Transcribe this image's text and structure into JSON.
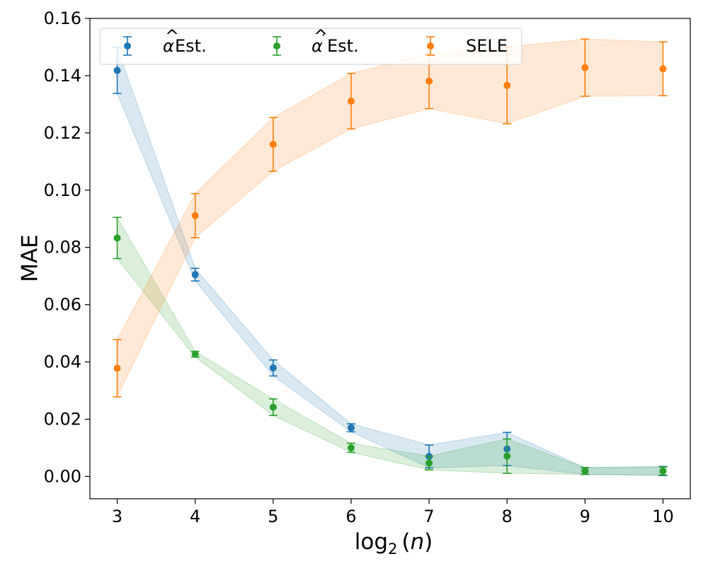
{
  "chart_data": {
    "type": "scatter",
    "title": "",
    "xlabel_parts": [
      "log",
      "2",
      "(",
      "n",
      ")"
    ],
    "ylabel": "MAE",
    "xlim": [
      2.65,
      10.35
    ],
    "ylim": [
      -0.0078,
      0.16
    ],
    "x": [
      3,
      4,
      5,
      6,
      7,
      8,
      9,
      10
    ],
    "xticks": [
      "3",
      "4",
      "5",
      "6",
      "7",
      "8",
      "9",
      "10"
    ],
    "yticks": [
      "0.00",
      "0.02",
      "0.04",
      "0.06",
      "0.08",
      "0.10",
      "0.12",
      "0.14",
      "0.16"
    ],
    "ytick_values": [
      0.0,
      0.02,
      0.04,
      0.06,
      0.08,
      0.1,
      0.12,
      0.14,
      0.16
    ],
    "legend_position": "upper-left",
    "series": [
      {
        "name": "α̂ Est.",
        "label_base": "α",
        "label_mark": "^",
        "label_suffix": " Est.",
        "color": "#1f77b4",
        "fill": "#c6dbef",
        "values": [
          0.1418,
          0.0705,
          0.0379,
          0.017,
          0.007,
          0.0096,
          0.0019,
          0.0019
        ],
        "err": [
          0.008,
          0.0022,
          0.0028,
          0.0014,
          0.004,
          0.0058,
          0.0012,
          0.0016
        ]
      },
      {
        "name": "α̂′ Est.",
        "label_base": "α",
        "label_mark": "^",
        "label_prime": "′",
        "label_suffix": " Est.",
        "color": "#2ca02c",
        "fill": "#c7e9c0",
        "values": [
          0.0833,
          0.0427,
          0.0242,
          0.01,
          0.0047,
          0.0071,
          0.0019,
          0.0019
        ],
        "err": [
          0.0072,
          0.001,
          0.0029,
          0.0016,
          0.0024,
          0.006,
          0.0012,
          0.0014
        ]
      },
      {
        "name": "SELE",
        "label_base": "SELE",
        "label_suffix": "",
        "color": "#ff7f0e",
        "fill": "#fdd0a2",
        "values": [
          0.0378,
          0.0911,
          0.116,
          0.1311,
          0.1381,
          0.1366,
          0.1428,
          0.1424
        ],
        "err": [
          0.01,
          0.0077,
          0.0094,
          0.0097,
          0.0096,
          0.0134,
          0.01,
          0.0094
        ]
      }
    ]
  }
}
